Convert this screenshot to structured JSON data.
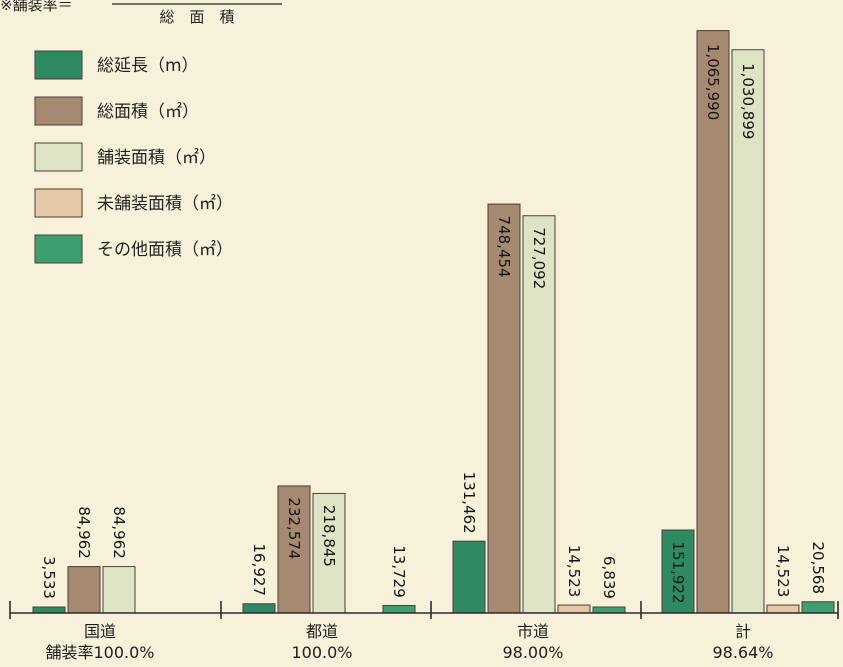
{
  "header_note": {
    "prefix": "※舗装率＝",
    "denominator": "総　面　積"
  },
  "colors": {
    "background": "#f8f1da",
    "stroke": "#4a4038",
    "axis": "#2b2b2b"
  },
  "chart_data": {
    "type": "bar",
    "title": "",
    "xlabel": "",
    "ylabel": "",
    "ylim": [
      0,
      1100000
    ],
    "grid": false,
    "legend_position": "top-left",
    "categories": [
      "国道",
      "都道",
      "市道",
      "計"
    ],
    "category_sublabels": [
      "舗装率100.0%",
      "100.0%",
      "98.00%",
      "98.64%"
    ],
    "series": [
      {
        "name": "総延長（m）",
        "color": "#2e8a63",
        "values": [
          3533,
          16927,
          131462,
          151922
        ],
        "labels": [
          "3,533",
          "16,927",
          "131,462",
          "151,922"
        ]
      },
      {
        "name": "総面積（㎡）",
        "color": "#a58a71",
        "values": [
          84962,
          232574,
          748454,
          1065990
        ],
        "labels": [
          "84,962",
          "232,574",
          "748,454",
          "1,065,990"
        ]
      },
      {
        "name": "舗装面積（㎡）",
        "color": "#dce4c4",
        "values": [
          84962,
          218845,
          727092,
          1030899
        ],
        "labels": [
          "84,962",
          "218,845",
          "727,092",
          "1,030,899"
        ]
      },
      {
        "name": "未舗装面積（㎡）",
        "color": "#e5c8a5",
        "values": [
          0,
          0,
          14523,
          14523
        ],
        "labels": [
          "",
          "",
          "14,523",
          "14,523"
        ]
      },
      {
        "name": "その他面積（㎡）",
        "color": "#3e9e72",
        "values": [
          0,
          13729,
          6839,
          20568
        ],
        "labels": [
          "",
          "13,729",
          "6,839",
          "20,568"
        ]
      }
    ]
  }
}
